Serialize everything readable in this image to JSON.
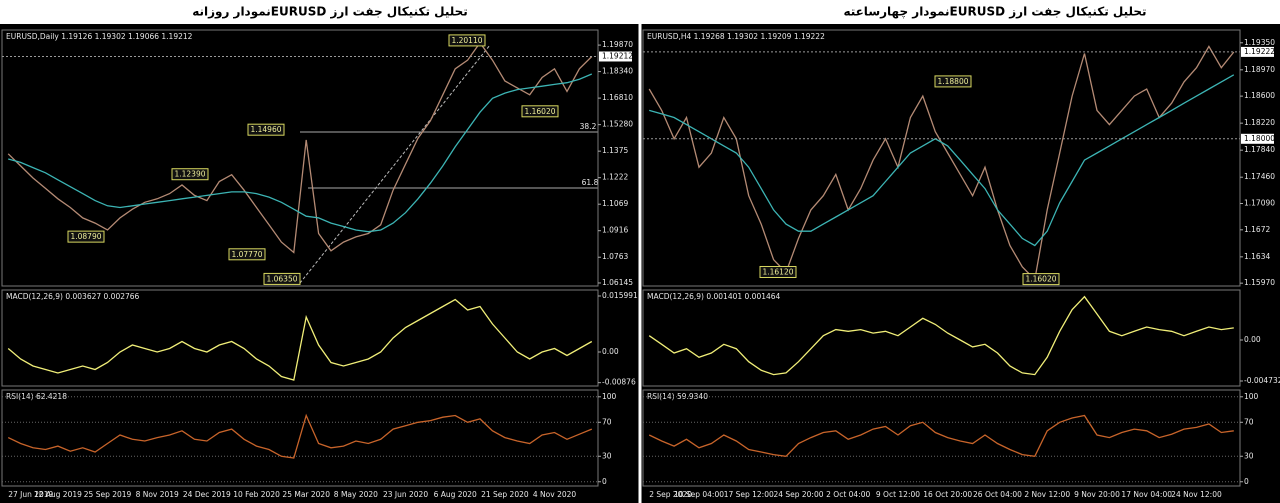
{
  "chart_data": [
    {
      "type": "line",
      "title": "تحلیل تکنیکال جفت ارز EURUSDنمودار روزانه",
      "header": "EURUSD,Daily 1.19126 1.19302 1.19066 1.19212",
      "categories": [
        "27 Jun 2019",
        null,
        null,
        null,
        "12 Aug 2019",
        null,
        null,
        null,
        "25 Sep 2019",
        null,
        null,
        null,
        "8 Nov 2019",
        null,
        null,
        null,
        "24 Dec 2019",
        null,
        null,
        null,
        "10 Feb 2020",
        null,
        null,
        null,
        "25 Mar 2020",
        null,
        null,
        null,
        "8 May 2020",
        null,
        null,
        null,
        "23 Jun 2020",
        null,
        null,
        null,
        "6 Aug 2020",
        null,
        null,
        null,
        "21 Sep 2020",
        null,
        null,
        null,
        "4 Nov 2020",
        null,
        null,
        null
      ],
      "series": [
        {
          "color": "#b48a74",
          "values": [
            1.136,
            1.129,
            1.122,
            1.116,
            1.11,
            1.105,
            1.099,
            1.096,
            1.092,
            1.099,
            1.104,
            1.108,
            1.11,
            1.113,
            1.118,
            1.112,
            1.109,
            1.12,
            1.1239,
            1.115,
            1.105,
            1.095,
            1.085,
            1.079,
            1.144,
            1.09,
            1.08,
            1.085,
            1.088,
            1.09,
            1.095,
            1.115,
            1.13,
            1.145,
            1.155,
            1.17,
            1.185,
            1.19,
            1.2,
            1.19,
            1.178,
            1.174,
            1.17,
            1.18,
            1.185,
            1.172,
            1.185,
            1.1921
          ]
        },
        {
          "color": "#3cb4b4",
          "values": [
            1.133,
            1.131,
            1.128,
            1.125,
            1.121,
            1.117,
            1.113,
            1.109,
            1.106,
            1.105,
            1.106,
            1.107,
            1.108,
            1.109,
            1.11,
            1.111,
            1.112,
            1.113,
            1.114,
            1.114,
            1.113,
            1.111,
            1.108,
            1.104,
            1.1,
            1.099,
            1.096,
            1.094,
            1.092,
            1.091,
            1.092,
            1.096,
            1.102,
            1.11,
            1.119,
            1.129,
            1.14,
            1.15,
            1.16,
            1.168,
            1.171,
            1.173,
            1.174,
            1.175,
            1.176,
            1.177,
            1.179,
            1.182
          ]
        }
      ],
      "ylim": [
        1.0597,
        1.2074
      ],
      "yticks": [
        {
          "value": 1.1987,
          "label": "1.19870"
        },
        {
          "value": 1.1834,
          "label": "1.18340"
        },
        {
          "value": 1.1681,
          "label": "1.16810"
        },
        {
          "value": 1.1528,
          "label": "1.15280"
        },
        1.1375,
        1.1222,
        1.1069,
        1.0916,
        1.0763,
        1.06145
      ],
      "annotations": [
        {
          "value": 1.2011,
          "label": "1.20110"
        },
        {
          "value": 1.1602,
          "label": "1.16020"
        },
        {
          "value": 1.1496,
          "label": "1.14960"
        },
        {
          "value": 1.1239,
          "label": "1.12390"
        },
        {
          "value": 1.0879,
          "label": "1.08790"
        },
        {
          "value": 1.0777,
          "label": "1.07770"
        },
        {
          "value": 1.0635,
          "label": "1.06350"
        }
      ],
      "fib_labels": [
        38.2,
        61.8
      ],
      "price_tags": [
        {
          "value": 1.19212,
          "label": "1.19212"
        }
      ],
      "macd": {
        "header": "MACD(12,26,9) 0.003627 0.002766",
        "color": "#f0ee78",
        "ylim": [
          -0.00971,
          0.0177
        ],
        "yticks": [
          0.015991,
          {
            "value": 0,
            "label": "0.00"
          },
          -0.00876
        ],
        "values": [
          0.001,
          -0.002,
          -0.004,
          -0.005,
          -0.006,
          -0.005,
          -0.004,
          -0.005,
          -0.003,
          0,
          0.002,
          0.001,
          0,
          0.001,
          0.003,
          0.001,
          0,
          0.002,
          0.003,
          0.001,
          -0.002,
          -0.004,
          -0.007,
          -0.008,
          0.01,
          0.002,
          -0.003,
          -0.004,
          -0.003,
          -0.002,
          0,
          0.004,
          0.007,
          0.009,
          0.011,
          0.013,
          0.015,
          0.012,
          0.013,
          0.008,
          0.004,
          0,
          -0.002,
          0,
          0.001,
          -0.001,
          0.001,
          0.003
        ]
      },
      "rsi": {
        "header": "RSI(14) 62.4218",
        "color": "#c8642a",
        "ylim": [
          -5,
          108
        ],
        "yticks": [
          100,
          70,
          30,
          0
        ],
        "grid": true,
        "values": [
          52,
          45,
          40,
          38,
          42,
          36,
          40,
          35,
          45,
          55,
          50,
          48,
          52,
          55,
          60,
          50,
          48,
          58,
          62,
          50,
          42,
          38,
          30,
          28,
          78,
          45,
          40,
          42,
          48,
          45,
          50,
          62,
          66,
          70,
          72,
          76,
          78,
          70,
          74,
          60,
          52,
          48,
          45,
          55,
          58,
          50,
          56,
          62
        ]
      }
    },
    {
      "type": "line",
      "title": "تحلیل تکنیکال جفت ارز EURUSDنمودار چهارساعته",
      "header": "EURUSD,H4 1.19268 1.19302 1.19209 1.19222",
      "categories": [
        "2 Sep 2020",
        null,
        null,
        null,
        "10 Sep 04:00",
        null,
        null,
        null,
        "17 Sep 12:00",
        null,
        null,
        null,
        "24 Sep 20:00",
        null,
        null,
        null,
        "2 Oct 04:00",
        null,
        null,
        null,
        "9 Oct 12:00",
        null,
        null,
        null,
        "16 Oct 20:00",
        null,
        null,
        null,
        "26 Oct 04:00",
        null,
        null,
        null,
        "2 Nov 12:00",
        null,
        null,
        null,
        "9 Nov 20:00",
        null,
        null,
        null,
        "17 Nov 04:00",
        null,
        null,
        null,
        "24 Nov 12:00",
        null,
        null,
        null
      ],
      "series": [
        {
          "color": "#b48a74",
          "values": [
            1.187,
            1.184,
            1.18,
            1.183,
            1.176,
            1.178,
            1.183,
            1.18,
            1.172,
            1.168,
            1.163,
            1.1612,
            1.166,
            1.17,
            1.172,
            1.175,
            1.17,
            1.173,
            1.177,
            1.18,
            1.176,
            1.183,
            1.186,
            1.181,
            1.178,
            1.175,
            1.172,
            1.176,
            1.17,
            1.165,
            1.162,
            1.1602,
            1.17,
            1.178,
            1.186,
            1.192,
            1.184,
            1.182,
            1.184,
            1.186,
            1.187,
            1.183,
            1.185,
            1.188,
            1.19,
            1.193,
            1.19,
            1.1922
          ]
        },
        {
          "color": "#3cb4b4",
          "values": [
            1.184,
            1.1835,
            1.183,
            1.182,
            1.181,
            1.18,
            1.179,
            1.178,
            1.176,
            1.173,
            1.17,
            1.168,
            1.167,
            1.167,
            1.168,
            1.169,
            1.17,
            1.171,
            1.172,
            1.174,
            1.176,
            1.178,
            1.179,
            1.18,
            1.179,
            1.177,
            1.175,
            1.173,
            1.17,
            1.168,
            1.166,
            1.165,
            1.167,
            1.171,
            1.174,
            1.177,
            1.178,
            1.179,
            1.18,
            1.181,
            1.182,
            1.183,
            1.184,
            1.185,
            1.186,
            1.187,
            1.188,
            1.189
          ]
        }
      ],
      "ylim": [
        1.1593,
        1.1953
      ],
      "yticks": [
        {
          "value": 1.1935,
          "label": "1.19350"
        },
        {
          "value": 1.1897,
          "label": "1.18970"
        },
        {
          "value": 1.186,
          "label": "1.18600"
        },
        {
          "value": 1.1822,
          "label": "1.18220"
        },
        {
          "value": 1.1784,
          "label": "1.17840"
        },
        {
          "value": 1.1746,
          "label": "1.17460"
        },
        {
          "value": 1.1709,
          "label": "1.17090"
        },
        1.1672,
        1.1634,
        {
          "value": 1.1597,
          "label": "1.15970"
        }
      ],
      "annotations": [
        {
          "value": 1.188,
          "label": "1.18800"
        },
        {
          "value": 1.1612,
          "label": "1.16120"
        },
        {
          "value": 1.1602,
          "label": "1.16020"
        }
      ],
      "price_tags": [
        {
          "value": 1.19222,
          "label": "1.19222"
        },
        {
          "value": 1.18,
          "label": "1.18000"
        }
      ],
      "macd": {
        "header": "MACD(12,26,9) 0.001401 0.001464",
        "color": "#f0ee78",
        "ylim": [
          -0.00531,
          0.00577
        ],
        "yticks": [
          {
            "value": 0,
            "label": "0.00"
          },
          -0.004732
        ],
        "values": [
          0.0005,
          -0.0005,
          -0.0015,
          -0.001,
          -0.002,
          -0.0015,
          -0.0005,
          -0.001,
          -0.0025,
          -0.0035,
          -0.004,
          -0.0038,
          -0.0025,
          -0.001,
          0.0005,
          0.0012,
          0.001,
          0.0012,
          0.0008,
          0.001,
          0.0005,
          0.0015,
          0.0025,
          0.0018,
          0.0008,
          0,
          -0.0008,
          -0.0005,
          -0.0015,
          -0.003,
          -0.0038,
          -0.004,
          -0.002,
          0.001,
          0.0035,
          0.005,
          0.003,
          0.001,
          0.0005,
          0.001,
          0.0015,
          0.0012,
          0.001,
          0.0005,
          0.001,
          0.0015,
          0.0012,
          0.0014
        ]
      },
      "rsi": {
        "header": "RSI(14) 59.9340",
        "color": "#c8642a",
        "ylim": [
          -5,
          108
        ],
        "yticks": [
          100,
          70,
          30,
          0
        ],
        "grid": true,
        "values": [
          55,
          48,
          42,
          50,
          40,
          45,
          55,
          48,
          38,
          35,
          32,
          30,
          45,
          52,
          58,
          60,
          50,
          55,
          62,
          65,
          55,
          66,
          70,
          58,
          52,
          48,
          45,
          55,
          45,
          38,
          32,
          30,
          60,
          70,
          75,
          78,
          55,
          52,
          58,
          62,
          60,
          52,
          56,
          62,
          64,
          68,
          58,
          60
        ]
      }
    }
  ]
}
